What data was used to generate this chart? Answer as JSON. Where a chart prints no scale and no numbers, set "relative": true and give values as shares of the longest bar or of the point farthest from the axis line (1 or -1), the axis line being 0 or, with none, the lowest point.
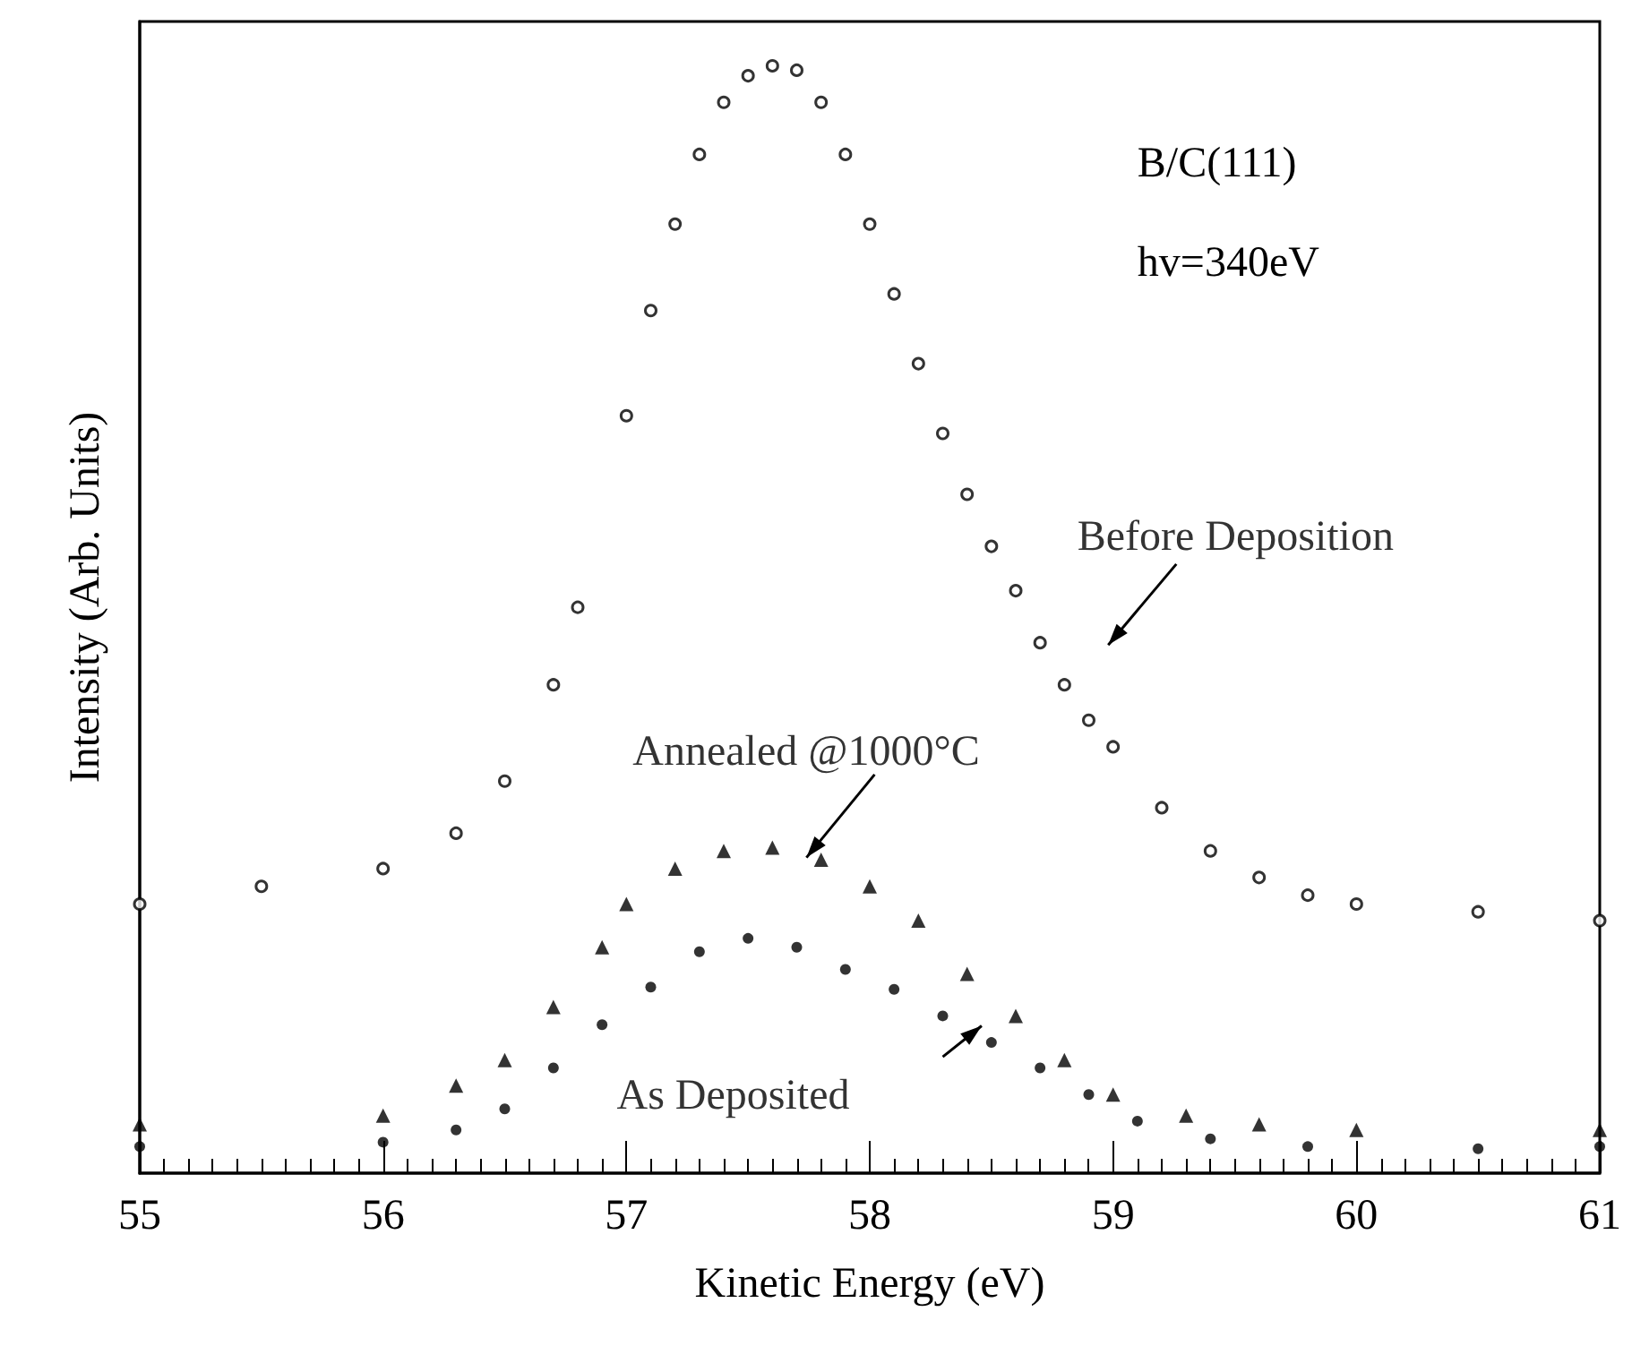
{
  "chart_data": {
    "type": "scatter",
    "xlabel": "Kinetic Energy (eV)",
    "ylabel": "Intensity (Arb. Units)",
    "relative": true,
    "xlim": [
      55,
      61
    ],
    "xticks": [
      55,
      56,
      57,
      58,
      59,
      60,
      61
    ],
    "grid": false,
    "legend": false,
    "tick_labels": "x",
    "annotations": [
      "B/C(111)",
      "hv=340eV"
    ],
    "series": [
      {
        "name": "Before Deposition",
        "color": "#000000",
        "marker": "circle",
        "x": [
          55,
          55.5,
          56,
          56.3,
          56.5,
          56.7,
          56.8,
          57,
          57.1,
          57.2,
          57.3,
          57.4,
          57.5,
          57.6,
          57.7,
          57.8,
          57.9,
          58,
          58.1,
          58.2,
          58.3,
          58.4,
          58.5,
          58.6,
          58.7,
          58.8,
          58.9,
          59,
          59.2,
          59.4,
          59.6,
          59.8,
          60,
          60.5,
          61
        ],
        "values": [
          0.243,
          0.259,
          0.275,
          0.307,
          0.354,
          0.441,
          0.511,
          0.684,
          0.779,
          0.857,
          0.92,
          0.967,
          0.991,
          1,
          0.996,
          0.967,
          0.92,
          0.857,
          0.794,
          0.731,
          0.668,
          0.613,
          0.566,
          0.526,
          0.479,
          0.441,
          0.409,
          0.385,
          0.33,
          0.291,
          0.267,
          0.251,
          0.243,
          0.236,
          0.228
        ]
      },
      {
        "name": "Annealed @1000°C",
        "color": "#000000",
        "marker": "triangle",
        "x": [
          55,
          56,
          56.3,
          56.5,
          56.7,
          56.9,
          57,
          57.2,
          57.4,
          57.6,
          57.8,
          58,
          58.2,
          58.4,
          58.6,
          58.8,
          59,
          59.3,
          59.6,
          60,
          61
        ],
        "values": [
          0.044,
          0.052,
          0.079,
          0.102,
          0.15,
          0.204,
          0.243,
          0.275,
          0.291,
          0.294,
          0.283,
          0.259,
          0.228,
          0.18,
          0.142,
          0.102,
          0.071,
          0.052,
          0.044,
          0.039,
          0.039
        ]
      },
      {
        "name": "As Deposited",
        "color": "#000000",
        "marker": "circle",
        "x": [
          55,
          56,
          56.3,
          56.5,
          56.7,
          56.9,
          57.1,
          57.3,
          57.5,
          57.7,
          57.9,
          58.1,
          58.3,
          58.5,
          58.7,
          58.9,
          59.1,
          59.4,
          59.8,
          60.5,
          61
        ],
        "values": [
          0.024,
          0.028,
          0.039,
          0.058,
          0.095,
          0.134,
          0.168,
          0.2,
          0.212,
          0.204,
          0.184,
          0.166,
          0.142,
          0.118,
          0.095,
          0.071,
          0.047,
          0.031,
          0.024,
          0.022,
          0.024
        ]
      }
    ]
  }
}
